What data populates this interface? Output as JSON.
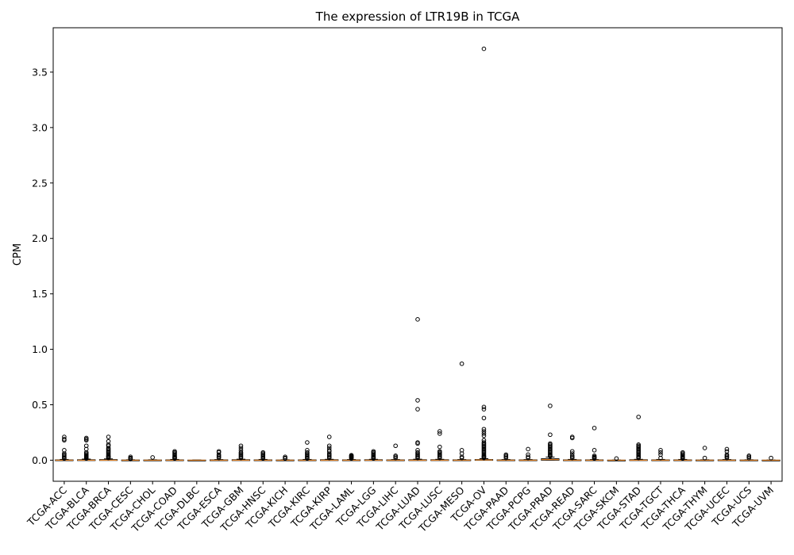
{
  "chart_data": {
    "type": "box",
    "title": "The expression of LTR19B in TCGA",
    "xlabel": "",
    "ylabel": "CPM",
    "ylim": [
      -0.19,
      3.9
    ],
    "yticks": [
      "0.0",
      "0.5",
      "1.0",
      "1.5",
      "2.0",
      "2.5",
      "3.0",
      "3.5"
    ],
    "grid": false,
    "categories": [
      "TCGA-ACC",
      "TCGA-BLCA",
      "TCGA-BRCA",
      "TCGA-CESC",
      "TCGA-CHOL",
      "TCGA-COAD",
      "TCGA-DLBC",
      "TCGA-ESCA",
      "TCGA-GBM",
      "TCGA-HNSC",
      "TCGA-KICH",
      "TCGA-KIRC",
      "TCGA-KIRP",
      "TCGA-LAML",
      "TCGA-LGG",
      "TCGA-LIHC",
      "TCGA-LUAD",
      "TCGA-LUSC",
      "TCGA-MESO",
      "TCGA-OV",
      "TCGA-PAAD",
      "TCGA-PCPG",
      "TCGA-PRAD",
      "TCGA-READ",
      "TCGA-SARC",
      "TCGA-SKCM",
      "TCGA-STAD",
      "TCGA-TGCT",
      "TCGA-THCA",
      "TCGA-THYM",
      "TCGA-UCEC",
      "TCGA-UCS",
      "TCGA-UVM"
    ],
    "boxes": [
      {
        "q1": 0,
        "median": 0,
        "q3": 0.003,
        "whisker_low": 0,
        "whisker_high": 0.007,
        "outliers": [
          0.21,
          0.19,
          0.18,
          0.09,
          0.06,
          0.05,
          0.04,
          0.03,
          0.02,
          0.015
        ]
      },
      {
        "q1": 0,
        "median": 0,
        "q3": 0.004,
        "whisker_low": 0,
        "whisker_high": 0.01,
        "outliers": [
          0.2,
          0.19,
          0.18,
          0.13,
          0.1,
          0.07,
          0.06,
          0.05,
          0.04,
          0.035,
          0.03,
          0.025,
          0.02,
          0.015
        ]
      },
      {
        "q1": 0,
        "median": 0,
        "q3": 0.005,
        "whisker_low": 0,
        "whisker_high": 0.012,
        "outliers": [
          0.21,
          0.17,
          0.14,
          0.13,
          0.11,
          0.1,
          0.09,
          0.08,
          0.07,
          0.06,
          0.05,
          0.04,
          0.035,
          0.03,
          0.025,
          0.02
        ]
      },
      {
        "q1": 0,
        "median": 0,
        "q3": 0.002,
        "whisker_low": 0,
        "whisker_high": 0.004,
        "outliers": [
          0.03,
          0.02,
          0.015,
          0.01
        ]
      },
      {
        "q1": 0,
        "median": 0,
        "q3": 0.002,
        "whisker_low": 0,
        "whisker_high": 0.004,
        "outliers": [
          0.025
        ]
      },
      {
        "q1": 0,
        "median": 0,
        "q3": 0.003,
        "whisker_low": 0,
        "whisker_high": 0.007,
        "outliers": [
          0.08,
          0.07,
          0.06,
          0.05,
          0.04,
          0.03,
          0.025,
          0.02,
          0.015
        ]
      },
      {
        "q1": 0,
        "median": 0,
        "q3": 0.001,
        "whisker_low": 0,
        "whisker_high": 0.002,
        "outliers": []
      },
      {
        "q1": 0,
        "median": 0,
        "q3": 0.003,
        "whisker_low": 0,
        "whisker_high": 0.006,
        "outliers": [
          0.08,
          0.07,
          0.05,
          0.04,
          0.03,
          0.02
        ]
      },
      {
        "q1": 0,
        "median": 0,
        "q3": 0.004,
        "whisker_low": 0,
        "whisker_high": 0.009,
        "outliers": [
          0.13,
          0.11,
          0.09,
          0.07,
          0.06,
          0.05,
          0.04,
          0.03,
          0.02
        ]
      },
      {
        "q1": 0,
        "median": 0,
        "q3": 0.003,
        "whisker_low": 0,
        "whisker_high": 0.007,
        "outliers": [
          0.07,
          0.06,
          0.05,
          0.04,
          0.03,
          0.02,
          0.015
        ]
      },
      {
        "q1": 0,
        "median": 0,
        "q3": 0.002,
        "whisker_low": 0,
        "whisker_high": 0.004,
        "outliers": [
          0.03,
          0.02,
          0.015
        ]
      },
      {
        "q1": 0,
        "median": 0,
        "q3": 0.003,
        "whisker_low": 0,
        "whisker_high": 0.007,
        "outliers": [
          0.16,
          0.09,
          0.07,
          0.06,
          0.05,
          0.04,
          0.03,
          0.02,
          0.015
        ]
      },
      {
        "q1": 0,
        "median": 0,
        "q3": 0.004,
        "whisker_low": 0,
        "whisker_high": 0.008,
        "outliers": [
          0.21,
          0.13,
          0.11,
          0.09,
          0.08,
          0.06,
          0.05,
          0.04,
          0.03,
          0.02
        ]
      },
      {
        "q1": 0,
        "median": 0,
        "q3": 0.003,
        "whisker_low": 0,
        "whisker_high": 0.006,
        "outliers": [
          0.045,
          0.04,
          0.035,
          0.03,
          0.025,
          0.02,
          0.015
        ]
      },
      {
        "q1": 0,
        "median": 0,
        "q3": 0.004,
        "whisker_low": 0,
        "whisker_high": 0.008,
        "outliers": [
          0.08,
          0.07,
          0.06,
          0.05,
          0.04,
          0.03,
          0.025,
          0.02,
          0.015
        ]
      },
      {
        "q1": 0,
        "median": 0,
        "q3": 0.003,
        "whisker_low": 0,
        "whisker_high": 0.006,
        "outliers": [
          0.13,
          0.04,
          0.03,
          0.02
        ]
      },
      {
        "q1": 0,
        "median": 0,
        "q3": 0.004,
        "whisker_low": 0,
        "whisker_high": 0.009,
        "outliers": [
          1.27,
          0.54,
          0.46,
          0.16,
          0.15,
          0.09,
          0.07,
          0.06,
          0.05,
          0.04,
          0.03,
          0.02
        ]
      },
      {
        "q1": 0,
        "median": 0,
        "q3": 0.004,
        "whisker_low": 0,
        "whisker_high": 0.008,
        "outliers": [
          0.26,
          0.24,
          0.12,
          0.08,
          0.07,
          0.06,
          0.05,
          0.04,
          0.03,
          0.02
        ]
      },
      {
        "q1": 0,
        "median": 0,
        "q3": 0.003,
        "whisker_low": 0,
        "whisker_high": 0.006,
        "outliers": [
          0.87,
          0.09,
          0.06,
          0.03,
          0.02
        ]
      },
      {
        "q1": 0,
        "median": 0.002,
        "q3": 0.006,
        "whisker_low": 0,
        "whisker_high": 0.014,
        "outliers": [
          3.71,
          0.48,
          0.46,
          0.38,
          0.28,
          0.26,
          0.24,
          0.22,
          0.18,
          0.16,
          0.15,
          0.14,
          0.13,
          0.12,
          0.11,
          0.1,
          0.09,
          0.08,
          0.07,
          0.06,
          0.05,
          0.04,
          0.035,
          0.03,
          0.025,
          0.02
        ]
      },
      {
        "q1": 0,
        "median": 0,
        "q3": 0.003,
        "whisker_low": 0,
        "whisker_high": 0.006,
        "outliers": [
          0.05,
          0.04,
          0.03,
          0.02
        ]
      },
      {
        "q1": 0,
        "median": 0,
        "q3": 0.003,
        "whisker_low": 0,
        "whisker_high": 0.006,
        "outliers": [
          0.1,
          0.05,
          0.03,
          0.02
        ]
      },
      {
        "q1": 0,
        "median": 0.006,
        "q3": 0.013,
        "whisker_low": 0,
        "whisker_high": 0.028,
        "outliers": [
          0.49,
          0.23,
          0.15,
          0.14,
          0.13,
          0.12,
          0.11,
          0.1,
          0.09,
          0.08,
          0.07,
          0.06,
          0.05,
          0.045,
          0.04,
          0.035
        ]
      },
      {
        "q1": 0,
        "median": 0,
        "q3": 0.003,
        "whisker_low": 0,
        "whisker_high": 0.007,
        "outliers": [
          0.21,
          0.2,
          0.08,
          0.06,
          0.04,
          0.03,
          0.02
        ]
      },
      {
        "q1": 0,
        "median": 0,
        "q3": 0.003,
        "whisker_low": 0,
        "whisker_high": 0.006,
        "outliers": [
          0.29,
          0.09,
          0.04,
          0.03,
          0.025,
          0.02,
          0.015
        ]
      },
      {
        "q1": 0,
        "median": 0,
        "q3": 0.001,
        "whisker_low": 0,
        "whisker_high": 0.002,
        "outliers": [
          0.015
        ]
      },
      {
        "q1": 0,
        "median": 0,
        "q3": 0.004,
        "whisker_low": 0,
        "whisker_high": 0.008,
        "outliers": [
          0.39,
          0.14,
          0.13,
          0.12,
          0.11,
          0.1,
          0.09,
          0.08,
          0.07,
          0.06,
          0.05,
          0.04,
          0.03,
          0.025,
          0.02
        ]
      },
      {
        "q1": 0,
        "median": 0,
        "q3": 0.003,
        "whisker_low": 0,
        "whisker_high": 0.007,
        "outliers": [
          0.09,
          0.07,
          0.05,
          0.02
        ]
      },
      {
        "q1": 0,
        "median": 0,
        "q3": 0.003,
        "whisker_low": 0,
        "whisker_high": 0.007,
        "outliers": [
          0.07,
          0.06,
          0.05,
          0.04,
          0.03,
          0.025,
          0.02,
          0.015
        ]
      },
      {
        "q1": 0,
        "median": 0,
        "q3": 0.002,
        "whisker_low": 0,
        "whisker_high": 0.004,
        "outliers": [
          0.11,
          0.02
        ]
      },
      {
        "q1": 0,
        "median": 0,
        "q3": 0.003,
        "whisker_low": 0,
        "whisker_high": 0.006,
        "outliers": [
          0.1,
          0.08,
          0.05,
          0.04,
          0.03,
          0.02
        ]
      },
      {
        "q1": 0,
        "median": 0,
        "q3": 0.002,
        "whisker_low": 0,
        "whisker_high": 0.004,
        "outliers": [
          0.04,
          0.03,
          0.02
        ]
      },
      {
        "q1": 0,
        "median": 0,
        "q3": 0.001,
        "whisker_low": 0,
        "whisker_high": 0.002,
        "outliers": [
          0.02
        ]
      }
    ]
  }
}
